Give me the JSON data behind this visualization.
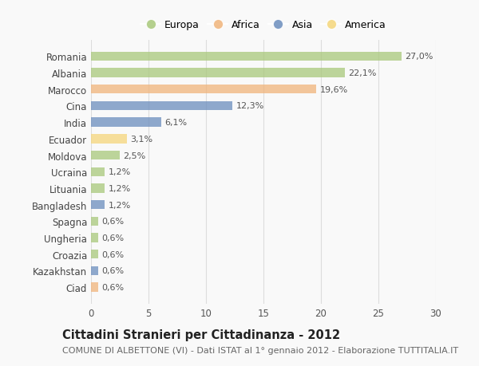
{
  "categories": [
    "Romania",
    "Albania",
    "Marocco",
    "Cina",
    "India",
    "Ecuador",
    "Moldova",
    "Ucraina",
    "Lituania",
    "Bangladesh",
    "Spagna",
    "Ungheria",
    "Croazia",
    "Kazakhstan",
    "Ciad"
  ],
  "values": [
    27.0,
    22.1,
    19.6,
    12.3,
    6.1,
    3.1,
    2.5,
    1.2,
    1.2,
    1.2,
    0.6,
    0.6,
    0.6,
    0.6,
    0.6
  ],
  "labels": [
    "27,0%",
    "22,1%",
    "19,6%",
    "12,3%",
    "6,1%",
    "3,1%",
    "2,5%",
    "1,2%",
    "1,2%",
    "1,2%",
    "0,6%",
    "0,6%",
    "0,6%",
    "0,6%",
    "0,6%"
  ],
  "colors": [
    "#a8c87a",
    "#a8c87a",
    "#f0b47a",
    "#6b8dbd",
    "#6b8dbd",
    "#f5d67a",
    "#a8c87a",
    "#a8c87a",
    "#a8c87a",
    "#6b8dbd",
    "#a8c87a",
    "#a8c87a",
    "#a8c87a",
    "#6b8dbd",
    "#f0b47a"
  ],
  "bar_alpha": 0.75,
  "legend_labels": [
    "Europa",
    "Africa",
    "Asia",
    "America"
  ],
  "legend_colors": [
    "#a8c87a",
    "#f0b47a",
    "#6b8dbd",
    "#f5d67a"
  ],
  "xlim": [
    0,
    30
  ],
  "xticks": [
    0,
    5,
    10,
    15,
    20,
    25,
    30
  ],
  "title": "Cittadini Stranieri per Cittadinanza - 2012",
  "subtitle": "COMUNE DI ALBETTONE (VI) - Dati ISTAT al 1° gennaio 2012 - Elaborazione TUTTITALIA.IT",
  "bg_color": "#f9f9f9",
  "grid_color": "#dddddd",
  "bar_height": 0.55,
  "title_fontsize": 10.5,
  "subtitle_fontsize": 8,
  "tick_fontsize": 8.5,
  "label_fontsize": 8,
  "legend_fontsize": 9
}
